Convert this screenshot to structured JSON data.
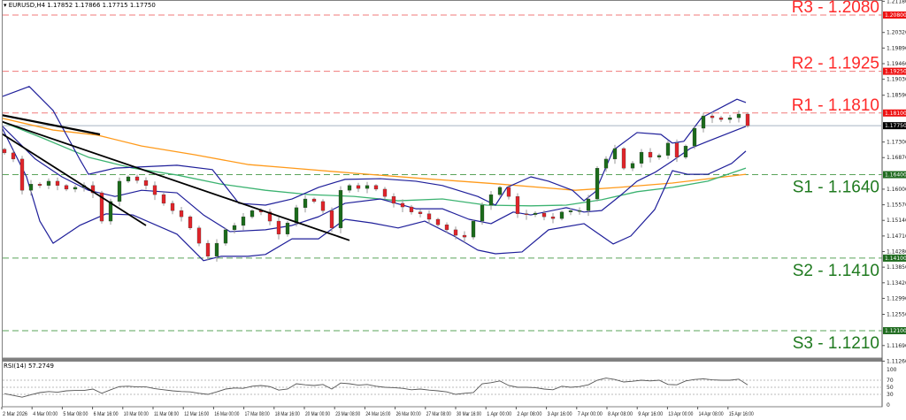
{
  "header": {
    "symbol": "EURUSD,H4",
    "open": "1.17852",
    "high": "1.17866",
    "low": "1.17715",
    "close": "1.17750",
    "icon": "triangle-down-icon"
  },
  "rsi_label": "RSI(14) 57.2749",
  "colors": {
    "resistance": "#ff2a2a",
    "resistance_line": "#f07a7a",
    "support": "#1f7a1f",
    "support_line": "#5aa35a",
    "bull": "#1b6b1b",
    "bear": "#e0242a",
    "bollinger": "#1f1f9a",
    "ma_fast": "#3cb371",
    "ma_slow": "#ff9a1a",
    "trendline": "#000000",
    "current_price": "#a9b4c2"
  },
  "levels": [
    {
      "name": "R3",
      "price": 1.208,
      "label": "R3 - 1.2080",
      "axis_label": "1.20800",
      "type": "resistance"
    },
    {
      "name": "R2",
      "price": 1.1925,
      "label": "R2 - 1.1925",
      "axis_label": "1.19250",
      "type": "resistance"
    },
    {
      "name": "R1",
      "price": 1.181,
      "label": "R1 - 1.1810",
      "axis_label": "1.18100",
      "type": "resistance"
    },
    {
      "name": "S1",
      "price": 1.164,
      "label": "S1 - 1.1640",
      "axis_label": "1.16400",
      "type": "support"
    },
    {
      "name": "S2",
      "price": 1.141,
      "label": "S2 - 1.1410",
      "axis_label": "1.14100",
      "type": "support"
    },
    {
      "name": "S3",
      "price": 1.121,
      "label": "S3 - 1.1210",
      "axis_label": "1.12100",
      "type": "support"
    }
  ],
  "current_price": {
    "price": 1.1775,
    "axis_label": "1.17750"
  },
  "chart_data": [
    {
      "type": "candlestick",
      "title": "EURUSD,H4",
      "y_ticks": [
        "1.21180",
        "1.20320",
        "1.19890",
        "1.19460",
        "1.19030",
        "1.18590",
        "1.17300",
        "1.16870",
        "1.16000",
        "1.15570",
        "1.15140",
        "1.14710",
        "1.14280",
        "1.13850",
        "1.13420",
        "1.12990",
        "1.12550",
        "1.11690",
        "1.11260"
      ],
      "x_ticks": [
        "2 Mar 2026",
        "4 Mar 00:00",
        "5 Mar 08:00",
        "6 Mar 16:00",
        "10 Mar 00:00",
        "11 Mar 08:00",
        "12 Mar 16:00",
        "16 Mar 00:00",
        "17 Mar 08:00",
        "18 Mar 16:00",
        "20 Mar 00:00",
        "23 Mar 08:00",
        "24 Mar 16:00",
        "26 Mar 00:00",
        "27 Mar 08:00",
        "30 Mar 16:00",
        "1 Apr 00:00",
        "2 Apr 08:00",
        "3 Apr 16:00",
        "7 Apr 00:00",
        "8 Apr 08:00",
        "9 Apr 16:00",
        "13 Apr 00:00",
        "14 Apr 08:00",
        "15 Apr 16:00"
      ],
      "ylim": [
        1.1115,
        1.218
      ],
      "grid": false,
      "closes": [
        1.17,
        1.1683,
        1.1597,
        1.1614,
        1.161,
        1.1622,
        1.161,
        1.16,
        1.1605,
        1.161,
        1.159,
        1.1512,
        1.1566,
        1.1622,
        1.1634,
        1.1624,
        1.161,
        1.1585,
        1.1561,
        1.1541,
        1.1524,
        1.1493,
        1.1451,
        1.1415,
        1.1451,
        1.1488,
        1.15,
        1.1524,
        1.1541,
        1.1537,
        1.1512,
        1.1476,
        1.1507,
        1.1549,
        1.1573,
        1.1566,
        1.1541,
        1.1493,
        1.1597,
        1.161,
        1.1602,
        1.161,
        1.16,
        1.158,
        1.1561,
        1.1551,
        1.1537,
        1.1532,
        1.1517,
        1.1502,
        1.1488,
        1.1473,
        1.1468,
        1.1512,
        1.1556,
        1.1585,
        1.1605,
        1.158,
        1.1532,
        1.153,
        1.1534,
        1.1524,
        1.1519,
        1.1537,
        1.1541,
        1.1541,
        1.1573,
        1.1658,
        1.1683,
        1.1712,
        1.1658,
        1.1671,
        1.1702,
        1.1688,
        1.1693,
        1.1727,
        1.1688,
        1.1719,
        1.1768,
        1.1802,
        1.1797,
        1.1792,
        1.1797,
        1.1807,
        1.1775
      ],
      "indicators": {
        "bollinger_upper": [
          [
            -0.5,
            1.1853
          ],
          [
            2.8,
            1.1883
          ],
          [
            5.5,
            1.1817
          ],
          [
            8.5,
            1.1683
          ],
          [
            9.5,
            1.1641
          ],
          [
            12.5,
            1.1658
          ],
          [
            19.5,
            1.1666
          ],
          [
            23.5,
            1.1654
          ],
          [
            26.5,
            1.1561
          ],
          [
            29.5,
            1.1556
          ],
          [
            32.5,
            1.1573
          ],
          [
            35.5,
            1.1605
          ],
          [
            38.5,
            1.1627
          ],
          [
            42.5,
            1.1629
          ],
          [
            46.5,
            1.1622
          ],
          [
            49.5,
            1.161
          ],
          [
            53.5,
            1.158
          ],
          [
            55.5,
            1.1556
          ],
          [
            56.8,
            1.1605
          ],
          [
            59.5,
            1.1634
          ],
          [
            61.5,
            1.1622
          ],
          [
            64.2,
            1.1597
          ],
          [
            65.5,
            1.1568
          ],
          [
            66.8,
            1.1593
          ],
          [
            68.8,
            1.1707
          ],
          [
            71.5,
            1.1756
          ],
          [
            74.2,
            1.1751
          ],
          [
            75.5,
            1.1727
          ],
          [
            76.8,
            1.1732
          ],
          [
            78.8,
            1.1797
          ],
          [
            82.8,
            1.1848
          ],
          [
            83.8,
            1.1839
          ]
        ],
        "bollinger_middle": [
          [
            -0.5,
            1.178
          ],
          [
            3.5,
            1.1683
          ],
          [
            6.5,
            1.1634
          ],
          [
            9.5,
            1.1597
          ],
          [
            12.5,
            1.158
          ],
          [
            15.5,
            1.1597
          ],
          [
            19.5,
            1.159
          ],
          [
            22.5,
            1.1529
          ],
          [
            25.5,
            1.1483
          ],
          [
            29.5,
            1.1488
          ],
          [
            32.5,
            1.15
          ],
          [
            35.5,
            1.1524
          ],
          [
            38.5,
            1.1561
          ],
          [
            42.5,
            1.1573
          ],
          [
            46.5,
            1.1546
          ],
          [
            49.5,
            1.1546
          ],
          [
            52.5,
            1.1517
          ],
          [
            55,
            1.1505
          ],
          [
            57.5,
            1.1537
          ],
          [
            59.5,
            1.1529
          ],
          [
            63.5,
            1.1549
          ],
          [
            65.5,
            1.1537
          ],
          [
            67.5,
            1.1541
          ],
          [
            69.5,
            1.158
          ],
          [
            71.5,
            1.1622
          ],
          [
            73.5,
            1.1646
          ],
          [
            75.5,
            1.1678
          ],
          [
            77.5,
            1.1712
          ],
          [
            79.5,
            1.1732
          ],
          [
            83.8,
            1.1773
          ]
        ],
        "bollinger_lower": [
          [
            -0.5,
            1.178
          ],
          [
            2.5,
            1.1634
          ],
          [
            4,
            1.1512
          ],
          [
            5.5,
            1.1451
          ],
          [
            8.5,
            1.15
          ],
          [
            11.5,
            1.1532
          ],
          [
            14.5,
            1.1529
          ],
          [
            19.5,
            1.1476
          ],
          [
            22.5,
            1.1403
          ],
          [
            24.5,
            1.1415
          ],
          [
            27.5,
            1.1415
          ],
          [
            29.5,
            1.142
          ],
          [
            32.5,
            1.1463
          ],
          [
            35.5,
            1.1463
          ],
          [
            38.5,
            1.1517
          ],
          [
            41.5,
            1.1507
          ],
          [
            44.5,
            1.1493
          ],
          [
            47.5,
            1.1512
          ],
          [
            50.8,
            1.1471
          ],
          [
            53.5,
            1.1432
          ],
          [
            55.5,
            1.1422
          ],
          [
            58.5,
            1.1427
          ],
          [
            61.5,
            1.1488
          ],
          [
            65.5,
            1.1505
          ],
          [
            66.8,
            1.1483
          ],
          [
            68.8,
            1.1449
          ],
          [
            70.8,
            1.1471
          ],
          [
            73.5,
            1.1544
          ],
          [
            75.5,
            1.1651
          ],
          [
            77.2,
            1.1641
          ],
          [
            79.5,
            1.1641
          ],
          [
            82.2,
            1.1671
          ],
          [
            83.8,
            1.1705
          ]
        ],
        "ma_fast": [
          [
            -0.5,
            1.1788
          ],
          [
            4.5,
            1.1739
          ],
          [
            9.5,
            1.1688
          ],
          [
            14.5,
            1.1658
          ],
          [
            19.5,
            1.1639
          ],
          [
            24.5,
            1.1614
          ],
          [
            29.5,
            1.1597
          ],
          [
            34.5,
            1.1585
          ],
          [
            39.5,
            1.158
          ],
          [
            44.5,
            1.1568
          ],
          [
            49.5,
            1.1573
          ],
          [
            54.5,
            1.1556
          ],
          [
            59.5,
            1.1554
          ],
          [
            63.5,
            1.1556
          ],
          [
            67.5,
            1.1571
          ],
          [
            71.5,
            1.1593
          ],
          [
            75.5,
            1.1605
          ],
          [
            79.5,
            1.1622
          ],
          [
            83.8,
            1.1658
          ]
        ],
        "ma_slow": [
          [
            -0.5,
            1.1797
          ],
          [
            5.5,
            1.1763
          ],
          [
            10.5,
            1.1749
          ],
          [
            15.5,
            1.1719
          ],
          [
            21.5,
            1.1695
          ],
          [
            27.5,
            1.1668
          ],
          [
            32.5,
            1.1658
          ],
          [
            39.5,
            1.1644
          ],
          [
            47.5,
            1.1629
          ],
          [
            55.5,
            1.1615
          ],
          [
            64.5,
            1.1597
          ],
          [
            69.5,
            1.1605
          ],
          [
            75.5,
            1.1617
          ],
          [
            83.8,
            1.1641
          ]
        ]
      },
      "trendlines": [
        [
          [
            -0.5,
            1.1805
          ],
          [
            10.8,
            1.1751
          ]
        ],
        [
          [
            -0.5,
            1.1788
          ],
          [
            39,
            1.1459
          ]
        ],
        [
          [
            -0.5,
            1.1756
          ],
          [
            16,
            1.15
          ]
        ]
      ]
    },
    {
      "type": "line",
      "title": "RSI(14) 57.2749",
      "ylim": [
        0,
        100
      ],
      "y_ticks": [
        "100",
        "70",
        "50",
        "30",
        "0"
      ],
      "levels": [
        70,
        50,
        30
      ],
      "values": [
        32,
        27,
        22,
        29,
        35,
        38,
        36,
        40,
        41,
        41,
        45,
        33,
        43,
        52,
        53,
        51,
        51,
        46,
        43,
        40,
        38,
        37,
        33,
        30,
        37,
        45,
        48,
        47,
        53,
        55,
        52,
        42,
        45,
        60,
        57,
        55,
        58,
        45,
        62,
        60,
        56,
        58,
        53,
        50,
        49,
        47,
        43,
        45,
        42,
        40,
        37,
        30,
        33,
        35,
        60,
        63,
        68,
        55,
        50,
        50,
        49,
        45,
        43,
        53,
        50,
        52,
        57,
        70,
        76,
        72,
        65,
        67,
        70,
        68,
        70,
        58,
        57,
        68,
        72,
        74,
        71,
        70,
        70,
        73,
        57
      ]
    }
  ]
}
